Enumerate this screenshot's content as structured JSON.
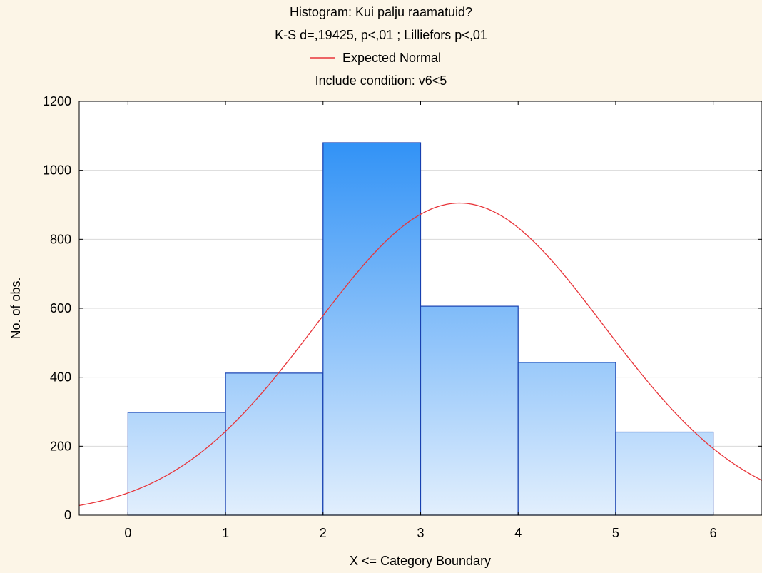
{
  "chart_data": {
    "type": "bar",
    "title_lines": [
      "Histogram: Kui palju raamatuid?",
      "K-S d=,19425, p<,01 ; Lilliefors p<,01"
    ],
    "legend_entry": "Expected Normal",
    "include_condition": "Include condition: v6<5",
    "xlabel": "X <= Category Boundary",
    "ylabel": "No. of obs.",
    "xlim": [
      -0.5,
      6.5
    ],
    "ylim": [
      0,
      1200
    ],
    "x_ticks": [
      "0",
      "1",
      "2",
      "3",
      "4",
      "5",
      "6"
    ],
    "y_ticks": [
      "0",
      "200",
      "400",
      "600",
      "800",
      "1000",
      "1200"
    ],
    "bins": [
      {
        "from": 0,
        "to": 1,
        "value": 298
      },
      {
        "from": 1,
        "to": 2,
        "value": 412
      },
      {
        "from": 2,
        "to": 3,
        "value": 1080
      },
      {
        "from": 3,
        "to": 4,
        "value": 606
      },
      {
        "from": 4,
        "to": 5,
        "value": 443
      },
      {
        "from": 5,
        "to": 6,
        "value": 241
      }
    ],
    "normal_curve": {
      "mean": 3.4,
      "sd": 1.48,
      "peak": 905
    },
    "grid": true,
    "legend_position": "top-center",
    "colors": {
      "background": "#fcf5e7",
      "plot_background": "#ffffff",
      "bar_top": "#1e88f5",
      "bar_bottom": "#e2effd",
      "bar_border": "#1740b0",
      "curve": "#e8353a",
      "grid": "#d9d9d9"
    }
  }
}
